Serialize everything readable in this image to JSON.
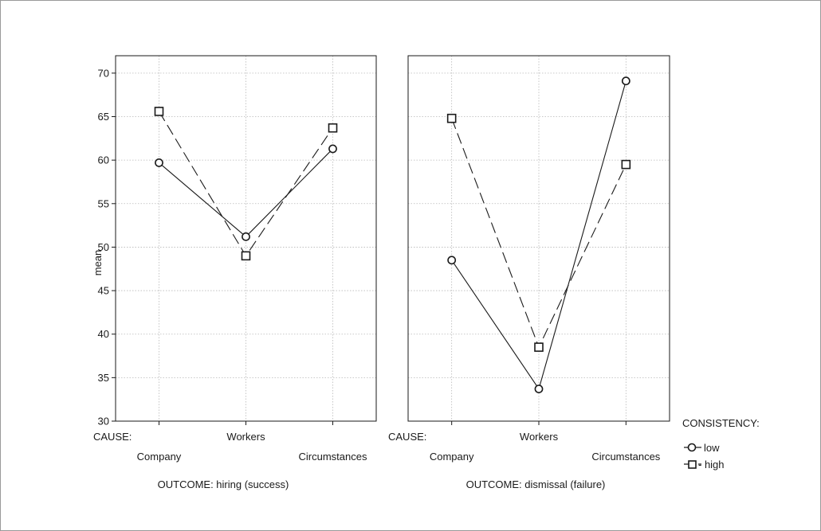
{
  "y_axis_label": "mean",
  "cause_label": "CAUSE:",
  "legend": {
    "title": "CONSISTENCY:",
    "items": [
      {
        "label": "low",
        "marker": "circle",
        "line": "solid"
      },
      {
        "label": "- high",
        "marker": "square",
        "line": "dashed"
      }
    ]
  },
  "colors": {
    "lines": "#1a1a1a",
    "grid": "#b8b8b8",
    "frame": "#9a9a9a"
  },
  "chart_data": [
    {
      "type": "line",
      "title": "OUTCOME: hiring (success)",
      "xlabel": "CAUSE:",
      "ylabel": "mean",
      "categories": [
        "Company",
        "Workers",
        "Circumstances"
      ],
      "ylim": [
        30,
        72
      ],
      "yticks": [
        30,
        35,
        40,
        45,
        50,
        55,
        60,
        65,
        70
      ],
      "grid": true,
      "series": [
        {
          "name": "low",
          "values": [
            59.7,
            51.2,
            61.3
          ]
        },
        {
          "name": "high",
          "values": [
            65.6,
            49.0,
            63.7
          ]
        }
      ]
    },
    {
      "type": "line",
      "title": "OUTCOME: dismissal (failure)",
      "xlabel": "CAUSE:",
      "categories": [
        "Company",
        "Workers",
        "Circumstances"
      ],
      "ylim": [
        30,
        72
      ],
      "grid": true,
      "series": [
        {
          "name": "low",
          "values": [
            48.5,
            33.7,
            69.1
          ]
        },
        {
          "name": "high",
          "values": [
            64.8,
            38.5,
            59.5
          ]
        }
      ]
    }
  ]
}
